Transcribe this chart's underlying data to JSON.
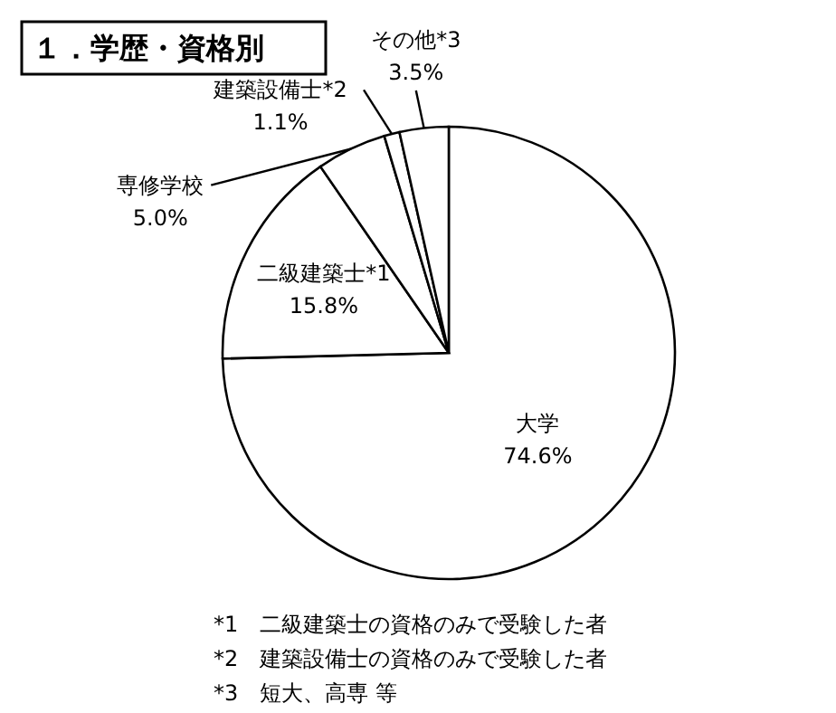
{
  "chart_data": {
    "type": "pie",
    "title": "１．学歴・資格別",
    "categories": [
      "大学",
      "二級建築士*1",
      "専修学校",
      "建築設備士*2",
      "その他*3"
    ],
    "values": [
      74.6,
      15.8,
      5.0,
      1.1,
      3.5
    ],
    "value_labels": [
      "74.6%",
      "15.8%",
      "5.0%",
      "1.1%",
      "3.5%"
    ],
    "colors": [
      "#ffffff",
      "#ffffff",
      "#ffffff",
      "#ffffff",
      "#ffffff"
    ],
    "annotations": [
      "*1　二級建築士の資格のみで受験した者",
      "*2　建築設備士の資格のみで受験した者",
      "*3　短大、高専 等"
    ],
    "legend": false
  }
}
